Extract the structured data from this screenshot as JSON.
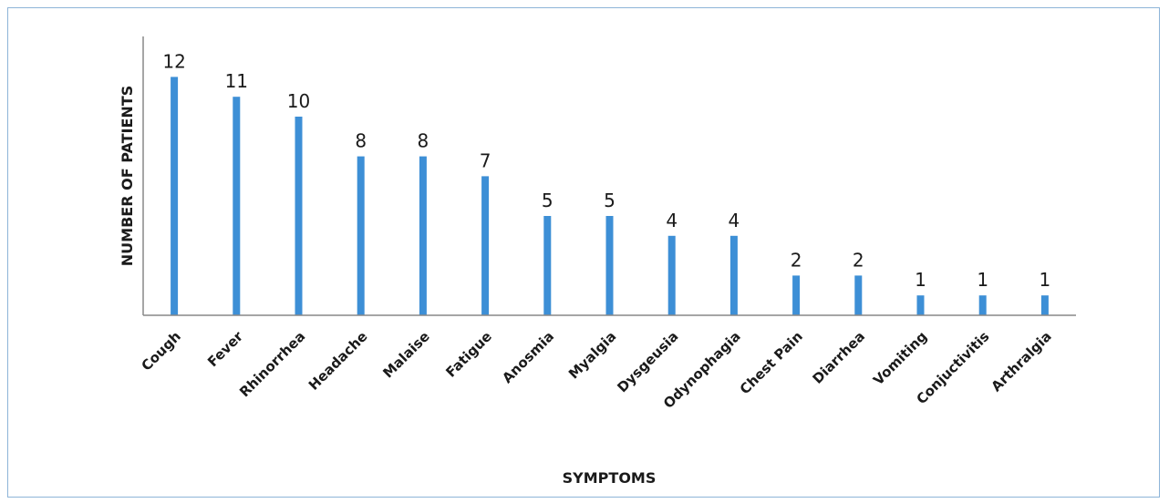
{
  "chart_data": {
    "type": "bar",
    "title": "",
    "xlabel": "SYMPTOMS",
    "ylabel": "NUMBER OF PATIENTS",
    "categories": [
      "Cough",
      "Fever",
      "Rhinorrhea",
      "Headache",
      "Malaise",
      "Fatigue",
      "Anosmia",
      "Myalgia",
      "Dysgeusia",
      "Odynophagia",
      "Chest Pain",
      "Diarrhea",
      "Vomiting",
      "Conjuctivitis",
      "Arthralgia"
    ],
    "values": [
      12,
      11,
      10,
      8,
      8,
      7,
      5,
      5,
      4,
      4,
      2,
      2,
      1,
      1,
      1
    ],
    "ylim": [
      0,
      14
    ],
    "grid": false,
    "legend": "none",
    "data_labels": true,
    "bar_color": "#3d8fd6",
    "axis_color": "#888888",
    "frame_color": "#8db4d8"
  }
}
